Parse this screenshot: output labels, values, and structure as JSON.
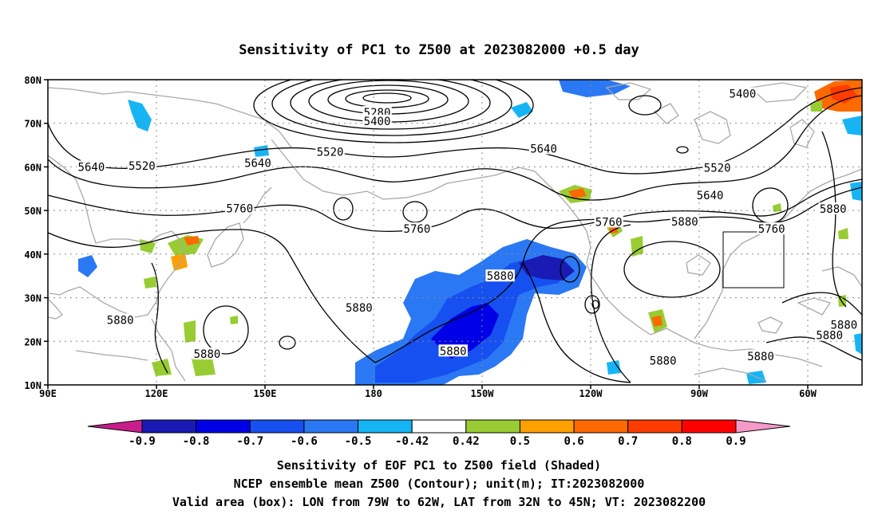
{
  "title": "Sensitivity of PC1 to Z500 at 2023082000 +0.5 day",
  "map": {
    "lat_ticks": [
      "80N",
      "70N",
      "60N",
      "50N",
      "40N",
      "30N",
      "20N",
      "10N"
    ],
    "lon_ticks": [
      "90E",
      "120E",
      "150E",
      "180",
      "150W",
      "120W",
      "90W",
      "60W"
    ],
    "lon_range": [
      90,
      315
    ],
    "lat_range": [
      10,
      80
    ],
    "grid": true,
    "valid_box": {
      "lon": [
        281,
        298
      ],
      "lat": [
        32,
        45
      ]
    }
  },
  "contour_labels": [
    {
      "text": "5280",
      "lon": 181,
      "lat": 72.5
    },
    {
      "text": "5400",
      "lon": 181,
      "lat": 70.5
    },
    {
      "text": "5400",
      "lon": 282,
      "lat": 76.8
    },
    {
      "text": "5520",
      "lon": 168,
      "lat": 63.5
    },
    {
      "text": "5520",
      "lon": 116,
      "lat": 60.3
    },
    {
      "text": "5520",
      "lon": 275,
      "lat": 59.8
    },
    {
      "text": "5640",
      "lon": 102,
      "lat": 60.0
    },
    {
      "text": "5640",
      "lon": 148,
      "lat": 60.9
    },
    {
      "text": "5640",
      "lon": 227,
      "lat": 64.2
    },
    {
      "text": "5640",
      "lon": 273,
      "lat": 53.5
    },
    {
      "text": "5760",
      "lon": 143,
      "lat": 50.5
    },
    {
      "text": "5760",
      "lon": 192,
      "lat": 45.8
    },
    {
      "text": "5760",
      "lon": 245,
      "lat": 47.4
    },
    {
      "text": "5760",
      "lon": 290,
      "lat": 45.8
    },
    {
      "text": "5880",
      "lon": 307,
      "lat": 50.4
    },
    {
      "text": "5880",
      "lon": 266,
      "lat": 47.5
    },
    {
      "text": "5880",
      "lon": 215,
      "lat": 35.0
    },
    {
      "text": "5880",
      "lon": 176,
      "lat": 27.7
    },
    {
      "text": "5880",
      "lon": 110,
      "lat": 24.9
    },
    {
      "text": "5880",
      "lon": 134,
      "lat": 17.1
    },
    {
      "text": "5880",
      "lon": 202,
      "lat": 17.8
    },
    {
      "text": "5880",
      "lon": 260,
      "lat": 15.6
    },
    {
      "text": "5880",
      "lon": 287,
      "lat": 16.6
    },
    {
      "text": "5880",
      "lon": 306,
      "lat": 21.4
    },
    {
      "text": "5880",
      "lon": 310,
      "lat": 23.8
    }
  ],
  "colorbar": {
    "labels": [
      "-0.9",
      "-0.8",
      "-0.7",
      "-0.6",
      "-0.5",
      "-0.42",
      "0.42",
      "0.5",
      "0.6",
      "0.7",
      "0.8",
      "0.9"
    ],
    "colors": [
      "#c81e8c",
      "#1a1ab4",
      "#0000e6",
      "#1650f0",
      "#2b78f5",
      "#15b5f5",
      "#ffffff",
      "#98cc32",
      "#ffa000",
      "#ff6a00",
      "#ff3c00",
      "#ff0000",
      "#f59ac8"
    ]
  },
  "caption": {
    "line1": "Sensitivity of EOF PC1 to Z500 field (Shaded)",
    "line2": "NCEP ensemble mean Z500 (Contour); unit(m); IT:2023082000",
    "line3": "Valid area (box): LON from 79W to 62W, LAT from 32N to 45N; VT: 2023082200"
  }
}
